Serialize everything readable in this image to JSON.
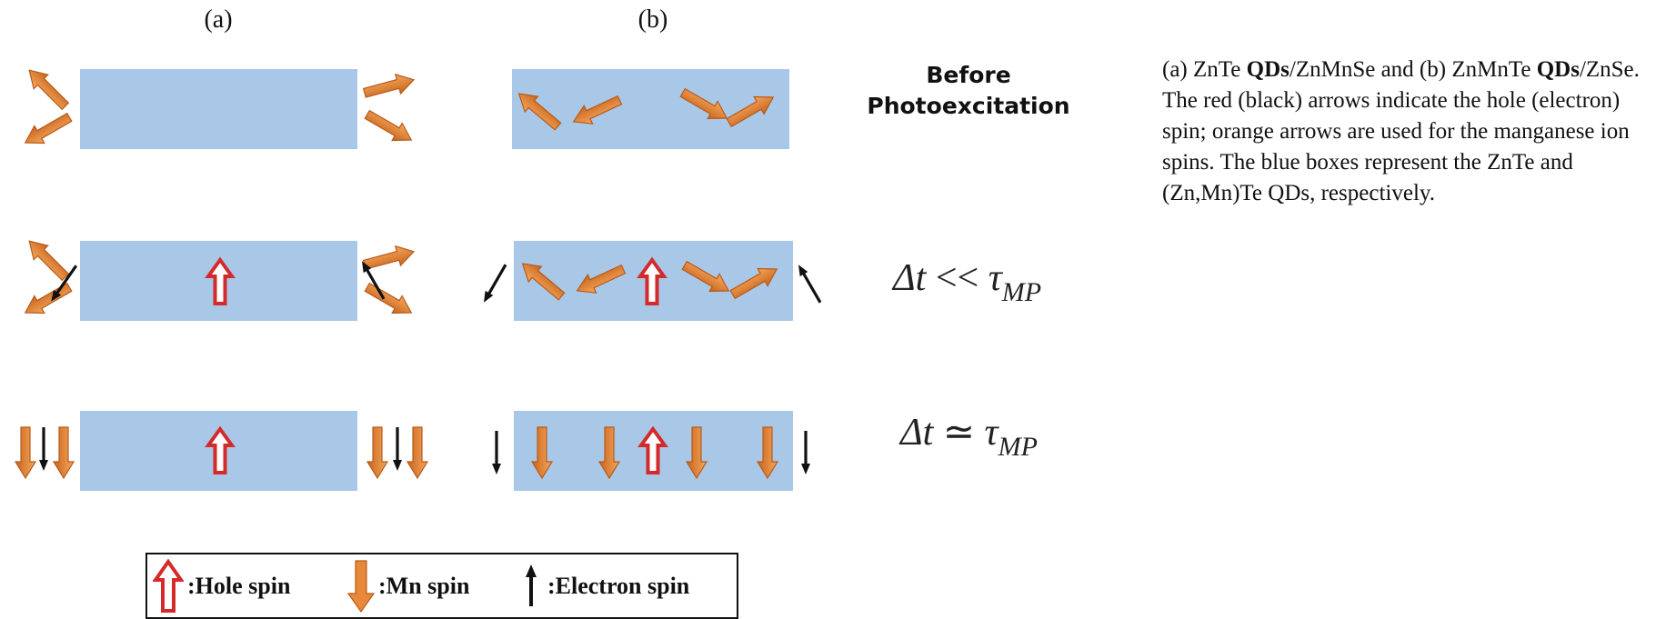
{
  "panels": {
    "a_label": "(a)",
    "b_label": "(b)"
  },
  "rows": {
    "before_line1": "Before",
    "before_line2": "Photoexcitation",
    "delta_t": "Δt",
    "much_less": " << ",
    "approx": " ≃ ",
    "tau": "τ",
    "mp": "MP"
  },
  "caption": {
    "p1": "(a) ZnTe ",
    "p2": "QDs",
    "p3": "/ZnMnSe and (b) ZnMnTe ",
    "p4": "QDs",
    "p5": "/ZnSe. The red (black) arrows indicate the hole (electron) spin; orange arrows are used for the manganese ion spins. The blue boxes represent the ZnTe and (Zn,Mn)Te QDs, respectively."
  },
  "legend": {
    "hole": ":Hole spin",
    "mn": ":Mn spin",
    "electron": ":Electron spin"
  },
  "colors": {
    "box": "#a9c8e8",
    "mn_arrow": "#e8893a",
    "hole_arrow": "#d42a2a",
    "electron_arrow": "#111111"
  }
}
